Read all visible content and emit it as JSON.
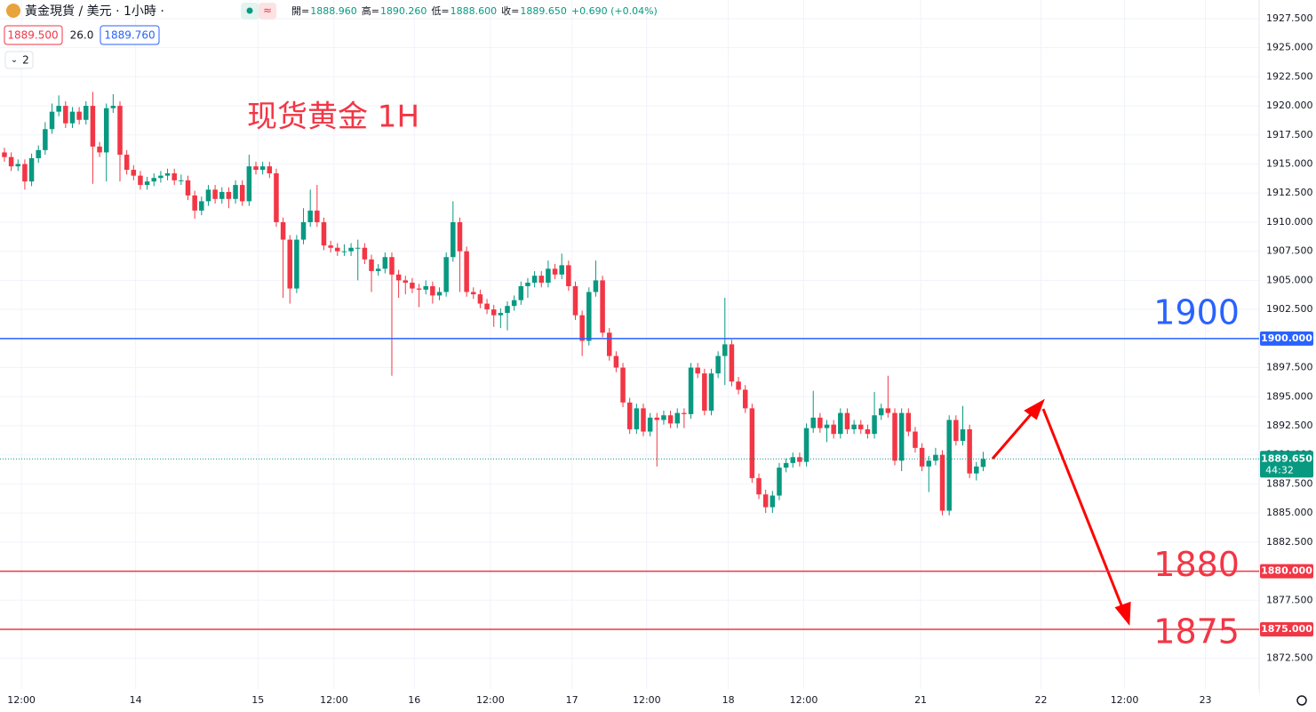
{
  "header": {
    "symbol": "黃金現貨 / 美元 · 1小時 ·",
    "ohlc": [
      {
        "label": "開=",
        "value": "1888.960"
      },
      {
        "label": "高=",
        "value": "1890.260"
      },
      {
        "label": "低=",
        "value": "1888.600"
      },
      {
        "label": "收=",
        "value": "1889.650"
      }
    ],
    "change": "+0.690 (+0.04%)",
    "bid": "1889.500",
    "spread": "26.0",
    "ask": "1889.760",
    "indicators": "2"
  },
  "chart_data": {
    "type": "candlestick",
    "title": "现货黄金 1H",
    "up_color": "#089981",
    "down_color": "#f23645",
    "grid": true,
    "ylim": [
      1869.5,
      1929.1
    ],
    "xlim": [
      -0.65,
      184.6
    ],
    "yticks": [
      {
        "value": 1872.5,
        "label": "1872.500"
      },
      {
        "value": 1875,
        "label": "1875.000"
      },
      {
        "value": 1877.5,
        "label": "1877.500"
      },
      {
        "value": 1880,
        "label": "1880.000"
      },
      {
        "value": 1882.5,
        "label": "1882.500"
      },
      {
        "value": 1885,
        "label": "1885.000"
      },
      {
        "value": 1887.5,
        "label": "1887.500"
      },
      {
        "value": 1890,
        "label": "1890.000"
      },
      {
        "value": 1892.5,
        "label": "1892.500"
      },
      {
        "value": 1895,
        "label": "1895.000"
      },
      {
        "value": 1897.5,
        "label": "1897.500"
      },
      {
        "value": 1900,
        "label": "1900.000"
      },
      {
        "value": 1902.5,
        "label": "1902.500"
      },
      {
        "value": 1905,
        "label": "1905.000"
      },
      {
        "value": 1907.5,
        "label": "1907.500"
      },
      {
        "value": 1910,
        "label": "1910.000"
      },
      {
        "value": 1912.5,
        "label": "1912.500"
      },
      {
        "value": 1915,
        "label": "1915.000"
      },
      {
        "value": 1917.5,
        "label": "1917.500"
      },
      {
        "value": 1920,
        "label": "1920.000"
      },
      {
        "value": 1922.5,
        "label": "1922.500"
      },
      {
        "value": 1925,
        "label": "1925.000"
      },
      {
        "value": 1927.5,
        "label": "1927.500"
      }
    ],
    "xticks": [
      {
        "value": 2.5,
        "label": "12:00"
      },
      {
        "value": 19.3,
        "label": "14"
      },
      {
        "value": 37.3,
        "label": "15"
      },
      {
        "value": 48.5,
        "label": "12:00"
      },
      {
        "value": 60.3,
        "label": "16"
      },
      {
        "value": 71.5,
        "label": "12:00"
      },
      {
        "value": 83.5,
        "label": "17"
      },
      {
        "value": 94.5,
        "label": "12:00"
      },
      {
        "value": 106.5,
        "label": "18"
      },
      {
        "value": 117.6,
        "label": "12:00"
      },
      {
        "value": 134.8,
        "label": "21"
      },
      {
        "value": 152.5,
        "label": "22"
      },
      {
        "value": 164.8,
        "label": "12:00"
      },
      {
        "value": 176.7,
        "label": "23"
      }
    ],
    "levels": [
      {
        "value": 1900,
        "color": "#2962ff",
        "label": "1900",
        "axis_label": "1900.000"
      },
      {
        "value": 1880,
        "color": "#f23645",
        "label": "1880",
        "axis_label": "1880.000"
      },
      {
        "value": 1875,
        "color": "#f23645",
        "label": "1875",
        "axis_label": "1875.000"
      }
    ],
    "last": {
      "value": 1889.65,
      "label": "1889.650",
      "countdown": "44:32"
    },
    "candles": [
      [
        1916.0,
        1916.4,
        1915.2,
        1915.6
      ],
      [
        1915.6,
        1916.0,
        1914.4,
        1914.8
      ],
      [
        1914.8,
        1915.4,
        1914.4,
        1915.0
      ],
      [
        1915.0,
        1915.4,
        1912.8,
        1913.5
      ],
      [
        1913.5,
        1915.9,
        1913.1,
        1915.5
      ],
      [
        1915.5,
        1916.6,
        1915.1,
        1916.2
      ],
      [
        1916.2,
        1918.6,
        1915.8,
        1918.0
      ],
      [
        1918.0,
        1920.2,
        1917.6,
        1919.5
      ],
      [
        1919.5,
        1920.9,
        1919.1,
        1920.0
      ],
      [
        1920.0,
        1920.4,
        1918.1,
        1918.5
      ],
      [
        1918.5,
        1919.9,
        1918.1,
        1919.5
      ],
      [
        1919.5,
        1919.9,
        1918.4,
        1918.8
      ],
      [
        1918.8,
        1920.4,
        1918.4,
        1920.0
      ],
      [
        1920.0,
        1921.2,
        1913.3,
        1916.5
      ],
      [
        1916.5,
        1916.9,
        1915.6,
        1916.0
      ],
      [
        1916.0,
        1920.2,
        1913.5,
        1919.8
      ],
      [
        1919.8,
        1921.0,
        1919.4,
        1920.0
      ],
      [
        1920.0,
        1920.4,
        1913.5,
        1915.8
      ],
      [
        1915.8,
        1916.2,
        1914.1,
        1914.5
      ],
      [
        1914.5,
        1914.9,
        1913.6,
        1914.0
      ],
      [
        1914.0,
        1914.4,
        1912.8,
        1913.2
      ],
      [
        1913.2,
        1913.9,
        1912.8,
        1913.5
      ],
      [
        1913.5,
        1914.2,
        1913.1,
        1913.8
      ],
      [
        1913.8,
        1914.4,
        1913.4,
        1914.0
      ],
      [
        1914.0,
        1914.6,
        1913.6,
        1914.2
      ],
      [
        1914.2,
        1914.6,
        1913.2,
        1913.6
      ],
      [
        1913.6,
        1914.1,
        1913.2,
        1913.6
      ],
      [
        1913.6,
        1914.0,
        1911.9,
        1912.3
      ],
      [
        1912.3,
        1912.7,
        1910.3,
        1911.0
      ],
      [
        1911.0,
        1912.2,
        1910.6,
        1911.8
      ],
      [
        1911.8,
        1913.2,
        1911.4,
        1912.8
      ],
      [
        1912.8,
        1913.2,
        1911.6,
        1912.0
      ],
      [
        1912.0,
        1913.0,
        1911.6,
        1912.6
      ],
      [
        1912.6,
        1913.0,
        1911.2,
        1912.0
      ],
      [
        1912.0,
        1913.6,
        1911.6,
        1913.2
      ],
      [
        1913.2,
        1913.6,
        1911.4,
        1911.8
      ],
      [
        1911.8,
        1915.8,
        1911.4,
        1914.8
      ],
      [
        1914.8,
        1915.2,
        1914.1,
        1914.5
      ],
      [
        1914.5,
        1915.2,
        1914.1,
        1914.8
      ],
      [
        1914.8,
        1915.2,
        1913.8,
        1914.2
      ],
      [
        1914.2,
        1914.6,
        1909.6,
        1910.0
      ],
      [
        1910.0,
        1910.4,
        1903.5,
        1908.5
      ],
      [
        1908.5,
        1908.9,
        1903.0,
        1904.3
      ],
      [
        1904.3,
        1908.9,
        1903.9,
        1908.5
      ],
      [
        1908.5,
        1911.2,
        1908.1,
        1910.0
      ],
      [
        1910.0,
        1912.8,
        1909.6,
        1911.0
      ],
      [
        1911.0,
        1913.2,
        1909.6,
        1910.0
      ],
      [
        1910.0,
        1910.4,
        1907.6,
        1908.0
      ],
      [
        1908.0,
        1908.4,
        1907.4,
        1907.8
      ],
      [
        1907.8,
        1908.2,
        1907.1,
        1907.5
      ],
      [
        1907.5,
        1908.1,
        1907.1,
        1907.5
      ],
      [
        1907.5,
        1908.2,
        1907.1,
        1907.8
      ],
      [
        1907.8,
        1908.5,
        1905.0,
        1907.8
      ],
      [
        1907.8,
        1908.2,
        1906.4,
        1906.8
      ],
      [
        1906.8,
        1907.2,
        1904.0,
        1905.8
      ],
      [
        1905.8,
        1906.4,
        1905.4,
        1906.0
      ],
      [
        1906.0,
        1907.4,
        1905.6,
        1907.0
      ],
      [
        1907.0,
        1907.4,
        1896.8,
        1905.5
      ],
      [
        1905.5,
        1905.9,
        1903.5,
        1905.0
      ],
      [
        1905.0,
        1905.4,
        1903.8,
        1904.8
      ],
      [
        1904.8,
        1905.2,
        1903.9,
        1904.3
      ],
      [
        1904.3,
        1904.7,
        1902.7,
        1904.2
      ],
      [
        1904.2,
        1905.0,
        1903.8,
        1904.5
      ],
      [
        1904.5,
        1904.9,
        1903.0,
        1903.7
      ],
      [
        1903.7,
        1904.4,
        1903.3,
        1904.0
      ],
      [
        1904.0,
        1907.4,
        1903.6,
        1907.0
      ],
      [
        1907.0,
        1911.8,
        1906.6,
        1910.0
      ],
      [
        1910.0,
        1910.4,
        1904.0,
        1907.5
      ],
      [
        1907.5,
        1907.9,
        1903.6,
        1904.0
      ],
      [
        1904.0,
        1904.4,
        1903.4,
        1903.8
      ],
      [
        1903.8,
        1904.2,
        1902.6,
        1903.0
      ],
      [
        1903.0,
        1903.4,
        1902.1,
        1902.5
      ],
      [
        1902.5,
        1902.9,
        1901.0,
        1902.0
      ],
      [
        1902.0,
        1902.6,
        1900.9,
        1902.2
      ],
      [
        1902.2,
        1903.2,
        1900.7,
        1902.8
      ],
      [
        1902.8,
        1903.7,
        1902.4,
        1903.3
      ],
      [
        1903.3,
        1904.9,
        1902.9,
        1904.5
      ],
      [
        1904.5,
        1905.2,
        1903.5,
        1904.8
      ],
      [
        1904.8,
        1905.8,
        1904.4,
        1905.4
      ],
      [
        1905.4,
        1905.8,
        1904.4,
        1904.8
      ],
      [
        1904.8,
        1906.7,
        1904.4,
        1906.0
      ],
      [
        1906.0,
        1906.4,
        1905.1,
        1905.5
      ],
      [
        1905.5,
        1907.3,
        1905.1,
        1906.3
      ],
      [
        1906.3,
        1906.7,
        1904.1,
        1904.5
      ],
      [
        1904.5,
        1904.9,
        1901.6,
        1902.0
      ],
      [
        1902.0,
        1902.4,
        1898.5,
        1899.8
      ],
      [
        1899.8,
        1904.4,
        1899.4,
        1904.0
      ],
      [
        1904.0,
        1906.7,
        1903.6,
        1905.0
      ],
      [
        1905.0,
        1905.4,
        1900.1,
        1900.5
      ],
      [
        1900.5,
        1900.9,
        1898.1,
        1898.5
      ],
      [
        1898.5,
        1898.9,
        1897.1,
        1897.5
      ],
      [
        1897.5,
        1897.9,
        1894.1,
        1894.5
      ],
      [
        1894.5,
        1894.9,
        1891.8,
        1892.2
      ],
      [
        1892.2,
        1894.4,
        1891.8,
        1894.0
      ],
      [
        1894.0,
        1894.4,
        1891.6,
        1892.0
      ],
      [
        1892.0,
        1893.6,
        1891.6,
        1893.2
      ],
      [
        1893.2,
        1893.6,
        1889.0,
        1893.0
      ],
      [
        1893.0,
        1893.8,
        1892.6,
        1893.4
      ],
      [
        1893.4,
        1893.8,
        1892.3,
        1892.7
      ],
      [
        1892.7,
        1894.0,
        1892.3,
        1893.6
      ],
      [
        1893.6,
        1894.0,
        1892.3,
        1893.5
      ],
      [
        1893.5,
        1897.9,
        1893.1,
        1897.5
      ],
      [
        1897.5,
        1897.9,
        1896.6,
        1897.0
      ],
      [
        1897.0,
        1897.4,
        1893.4,
        1893.8
      ],
      [
        1893.8,
        1897.4,
        1893.4,
        1897.0
      ],
      [
        1897.0,
        1898.9,
        1896.6,
        1898.5
      ],
      [
        1898.5,
        1903.5,
        1896.0,
        1899.5
      ],
      [
        1899.5,
        1899.9,
        1895.9,
        1896.3
      ],
      [
        1896.3,
        1896.7,
        1895.2,
        1895.6
      ],
      [
        1895.6,
        1896.0,
        1893.6,
        1894.0
      ],
      [
        1894.0,
        1894.4,
        1887.6,
        1888.0
      ],
      [
        1888.0,
        1888.4,
        1886.2,
        1886.6
      ],
      [
        1886.6,
        1887.0,
        1885.0,
        1885.5
      ],
      [
        1885.5,
        1886.9,
        1885.0,
        1886.5
      ],
      [
        1886.5,
        1889.3,
        1886.1,
        1888.9
      ],
      [
        1888.9,
        1889.7,
        1888.5,
        1889.3
      ],
      [
        1889.3,
        1890.2,
        1888.9,
        1889.8
      ],
      [
        1889.8,
        1890.2,
        1889.0,
        1889.4
      ],
      [
        1889.4,
        1892.7,
        1889.0,
        1892.3
      ],
      [
        1892.3,
        1895.5,
        1891.9,
        1893.2
      ],
      [
        1893.2,
        1893.6,
        1891.9,
        1892.3
      ],
      [
        1892.3,
        1893.0,
        1891.1,
        1892.6
      ],
      [
        1892.6,
        1893.0,
        1891.4,
        1891.8
      ],
      [
        1891.8,
        1894.0,
        1891.4,
        1893.6
      ],
      [
        1893.6,
        1894.0,
        1891.8,
        1892.2
      ],
      [
        1892.2,
        1893.0,
        1891.8,
        1892.6
      ],
      [
        1892.6,
        1893.0,
        1891.8,
        1892.2
      ],
      [
        1892.2,
        1892.6,
        1891.4,
        1891.8
      ],
      [
        1891.8,
        1895.4,
        1891.4,
        1893.4
      ],
      [
        1893.4,
        1894.4,
        1893.0,
        1894.0
      ],
      [
        1894.0,
        1896.8,
        1893.2,
        1893.6
      ],
      [
        1893.6,
        1894.0,
        1889.1,
        1889.5
      ],
      [
        1889.5,
        1894.0,
        1888.6,
        1893.6
      ],
      [
        1893.6,
        1894.0,
        1891.6,
        1892.0
      ],
      [
        1892.0,
        1892.4,
        1890.2,
        1890.6
      ],
      [
        1890.6,
        1891.0,
        1888.6,
        1889.0
      ],
      [
        1889.0,
        1889.9,
        1886.8,
        1889.5
      ],
      [
        1889.5,
        1890.6,
        1889.1,
        1890.0
      ],
      [
        1890.0,
        1890.4,
        1884.8,
        1885.2
      ],
      [
        1885.2,
        1893.4,
        1884.8,
        1893.0
      ],
      [
        1893.0,
        1893.4,
        1890.8,
        1891.2
      ],
      [
        1891.2,
        1894.2,
        1890.8,
        1892.2
      ],
      [
        1892.2,
        1892.6,
        1888.0,
        1888.4
      ],
      [
        1888.4,
        1889.4,
        1887.8,
        1889.0
      ],
      [
        1888.96,
        1890.26,
        1888.6,
        1889.65
      ]
    ]
  }
}
